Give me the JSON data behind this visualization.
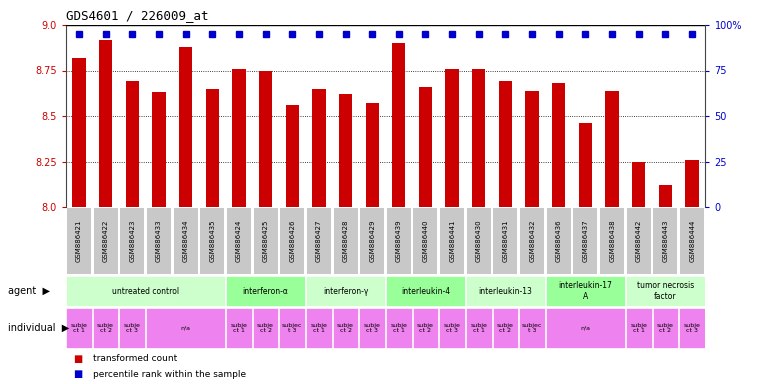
{
  "title": "GDS4601 / 226009_at",
  "samples": [
    "GSM886421",
    "GSM886422",
    "GSM886423",
    "GSM886433",
    "GSM886434",
    "GSM886435",
    "GSM886424",
    "GSM886425",
    "GSM886426",
    "GSM886427",
    "GSM886428",
    "GSM886429",
    "GSM886439",
    "GSM886440",
    "GSM886441",
    "GSM886430",
    "GSM886431",
    "GSM886432",
    "GSM886436",
    "GSM886437",
    "GSM886438",
    "GSM886442",
    "GSM886443",
    "GSM886444"
  ],
  "bar_values": [
    8.82,
    8.92,
    8.69,
    8.63,
    8.88,
    8.65,
    8.76,
    8.75,
    8.56,
    8.65,
    8.62,
    8.57,
    8.9,
    8.66,
    8.76,
    8.76,
    8.69,
    8.64,
    8.68,
    8.46,
    8.64,
    8.25,
    8.12,
    8.26
  ],
  "bar_color": "#cc0000",
  "dot_color": "#0000cc",
  "ylim_left": [
    8.0,
    9.0
  ],
  "ylim_right": [
    0,
    100
  ],
  "yticks_left": [
    8.0,
    8.25,
    8.5,
    8.75,
    9.0
  ],
  "yticks_right": [
    0,
    25,
    50,
    75,
    100
  ],
  "yticklabels_right": [
    "0",
    "25",
    "50",
    "75",
    "100%"
  ],
  "grid_lines": [
    8.25,
    8.5,
    8.75
  ],
  "agent_groups": [
    {
      "label": "untreated control",
      "start": 0,
      "end": 5,
      "color": "#ccffcc"
    },
    {
      "label": "interferon-α",
      "start": 6,
      "end": 8,
      "color": "#99ff99"
    },
    {
      "label": "interferon-γ",
      "start": 9,
      "end": 11,
      "color": "#ccffcc"
    },
    {
      "label": "interleukin-4",
      "start": 12,
      "end": 14,
      "color": "#99ff99"
    },
    {
      "label": "interleukin-13",
      "start": 15,
      "end": 17,
      "color": "#ccffcc"
    },
    {
      "label": "interleukin-17\nA",
      "start": 18,
      "end": 20,
      "color": "#99ff99"
    },
    {
      "label": "tumor necrosis\nfactor",
      "start": 21,
      "end": 23,
      "color": "#ccffcc"
    }
  ],
  "ind_data": [
    {
      "start": 0,
      "end": 0,
      "label": "subje\nct 1"
    },
    {
      "start": 1,
      "end": 1,
      "label": "subje\nct 2"
    },
    {
      "start": 2,
      "end": 2,
      "label": "subje\nct 3"
    },
    {
      "start": 3,
      "end": 5,
      "label": "n/a"
    },
    {
      "start": 6,
      "end": 6,
      "label": "subje\nct 1"
    },
    {
      "start": 7,
      "end": 7,
      "label": "subje\nct 2"
    },
    {
      "start": 8,
      "end": 8,
      "label": "subjec\nt 3"
    },
    {
      "start": 9,
      "end": 9,
      "label": "subje\nct 1"
    },
    {
      "start": 10,
      "end": 10,
      "label": "subje\nct 2"
    },
    {
      "start": 11,
      "end": 11,
      "label": "subje\nct 3"
    },
    {
      "start": 12,
      "end": 12,
      "label": "subje\nct 1"
    },
    {
      "start": 13,
      "end": 13,
      "label": "subje\nct 2"
    },
    {
      "start": 14,
      "end": 14,
      "label": "subje\nct 3"
    },
    {
      "start": 15,
      "end": 15,
      "label": "subje\nct 1"
    },
    {
      "start": 16,
      "end": 16,
      "label": "subje\nct 2"
    },
    {
      "start": 17,
      "end": 17,
      "label": "subjec\nt 3"
    },
    {
      "start": 18,
      "end": 20,
      "label": "n/a"
    },
    {
      "start": 21,
      "end": 21,
      "label": "subje\nct 1"
    },
    {
      "start": 22,
      "end": 22,
      "label": "subje\nct 2"
    },
    {
      "start": 23,
      "end": 23,
      "label": "subje\nct 3"
    }
  ],
  "legend_items": [
    {
      "color": "#cc0000",
      "label": "transformed count"
    },
    {
      "color": "#0000cc",
      "label": "percentile rank within the sample"
    }
  ],
  "sample_bg_color": "#c8c8c8",
  "magenta": "#ee82ee",
  "bar_width": 0.5
}
